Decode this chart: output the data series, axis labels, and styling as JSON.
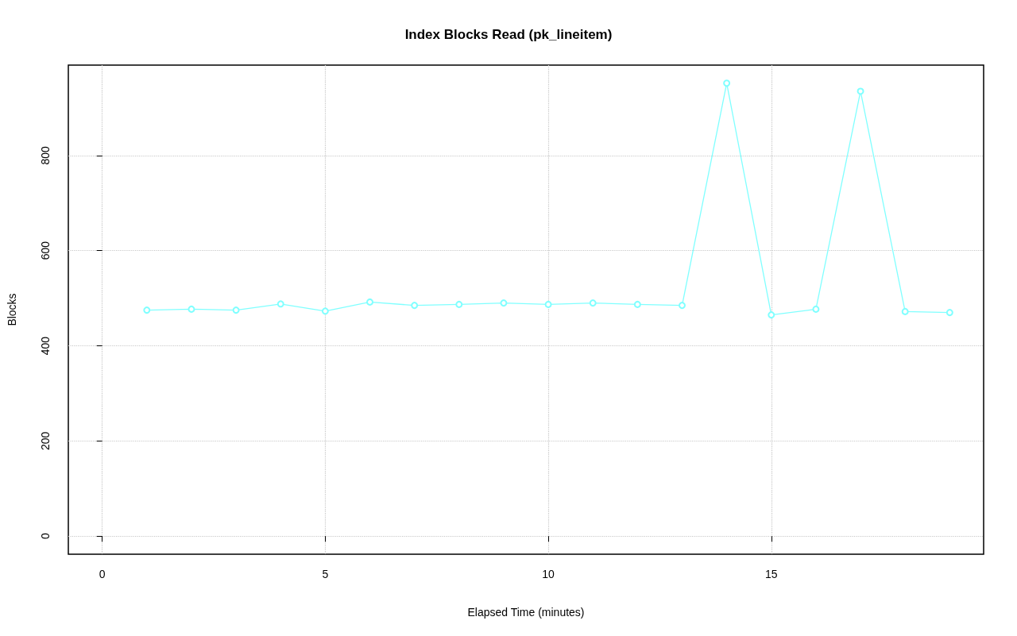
{
  "chart_data": {
    "type": "line",
    "title": "Index Blocks Read (pk_lineitem)",
    "xlabel": "Elapsed Time (minutes)",
    "ylabel": "Blocks",
    "x": [
      1,
      2,
      3,
      4,
      5,
      6,
      7,
      8,
      9,
      10,
      11,
      12,
      13,
      14,
      15,
      16,
      17,
      18,
      19
    ],
    "series": [
      {
        "color": "#80ffff",
        "values": [
          475,
          477,
          475,
          488,
          473,
          492,
          485,
          487,
          490,
          487,
          490,
          487,
          485,
          952,
          465,
          477,
          935,
          472,
          470
        ]
      }
    ],
    "xlim": [
      -0.76,
      19.76
    ],
    "xticks": [
      0,
      5,
      10,
      15
    ],
    "ylim": [
      -38,
      990
    ],
    "yticks": [
      0,
      200,
      400,
      600,
      800
    ],
    "grid": true,
    "marker": "circle",
    "line_style": "solid"
  }
}
